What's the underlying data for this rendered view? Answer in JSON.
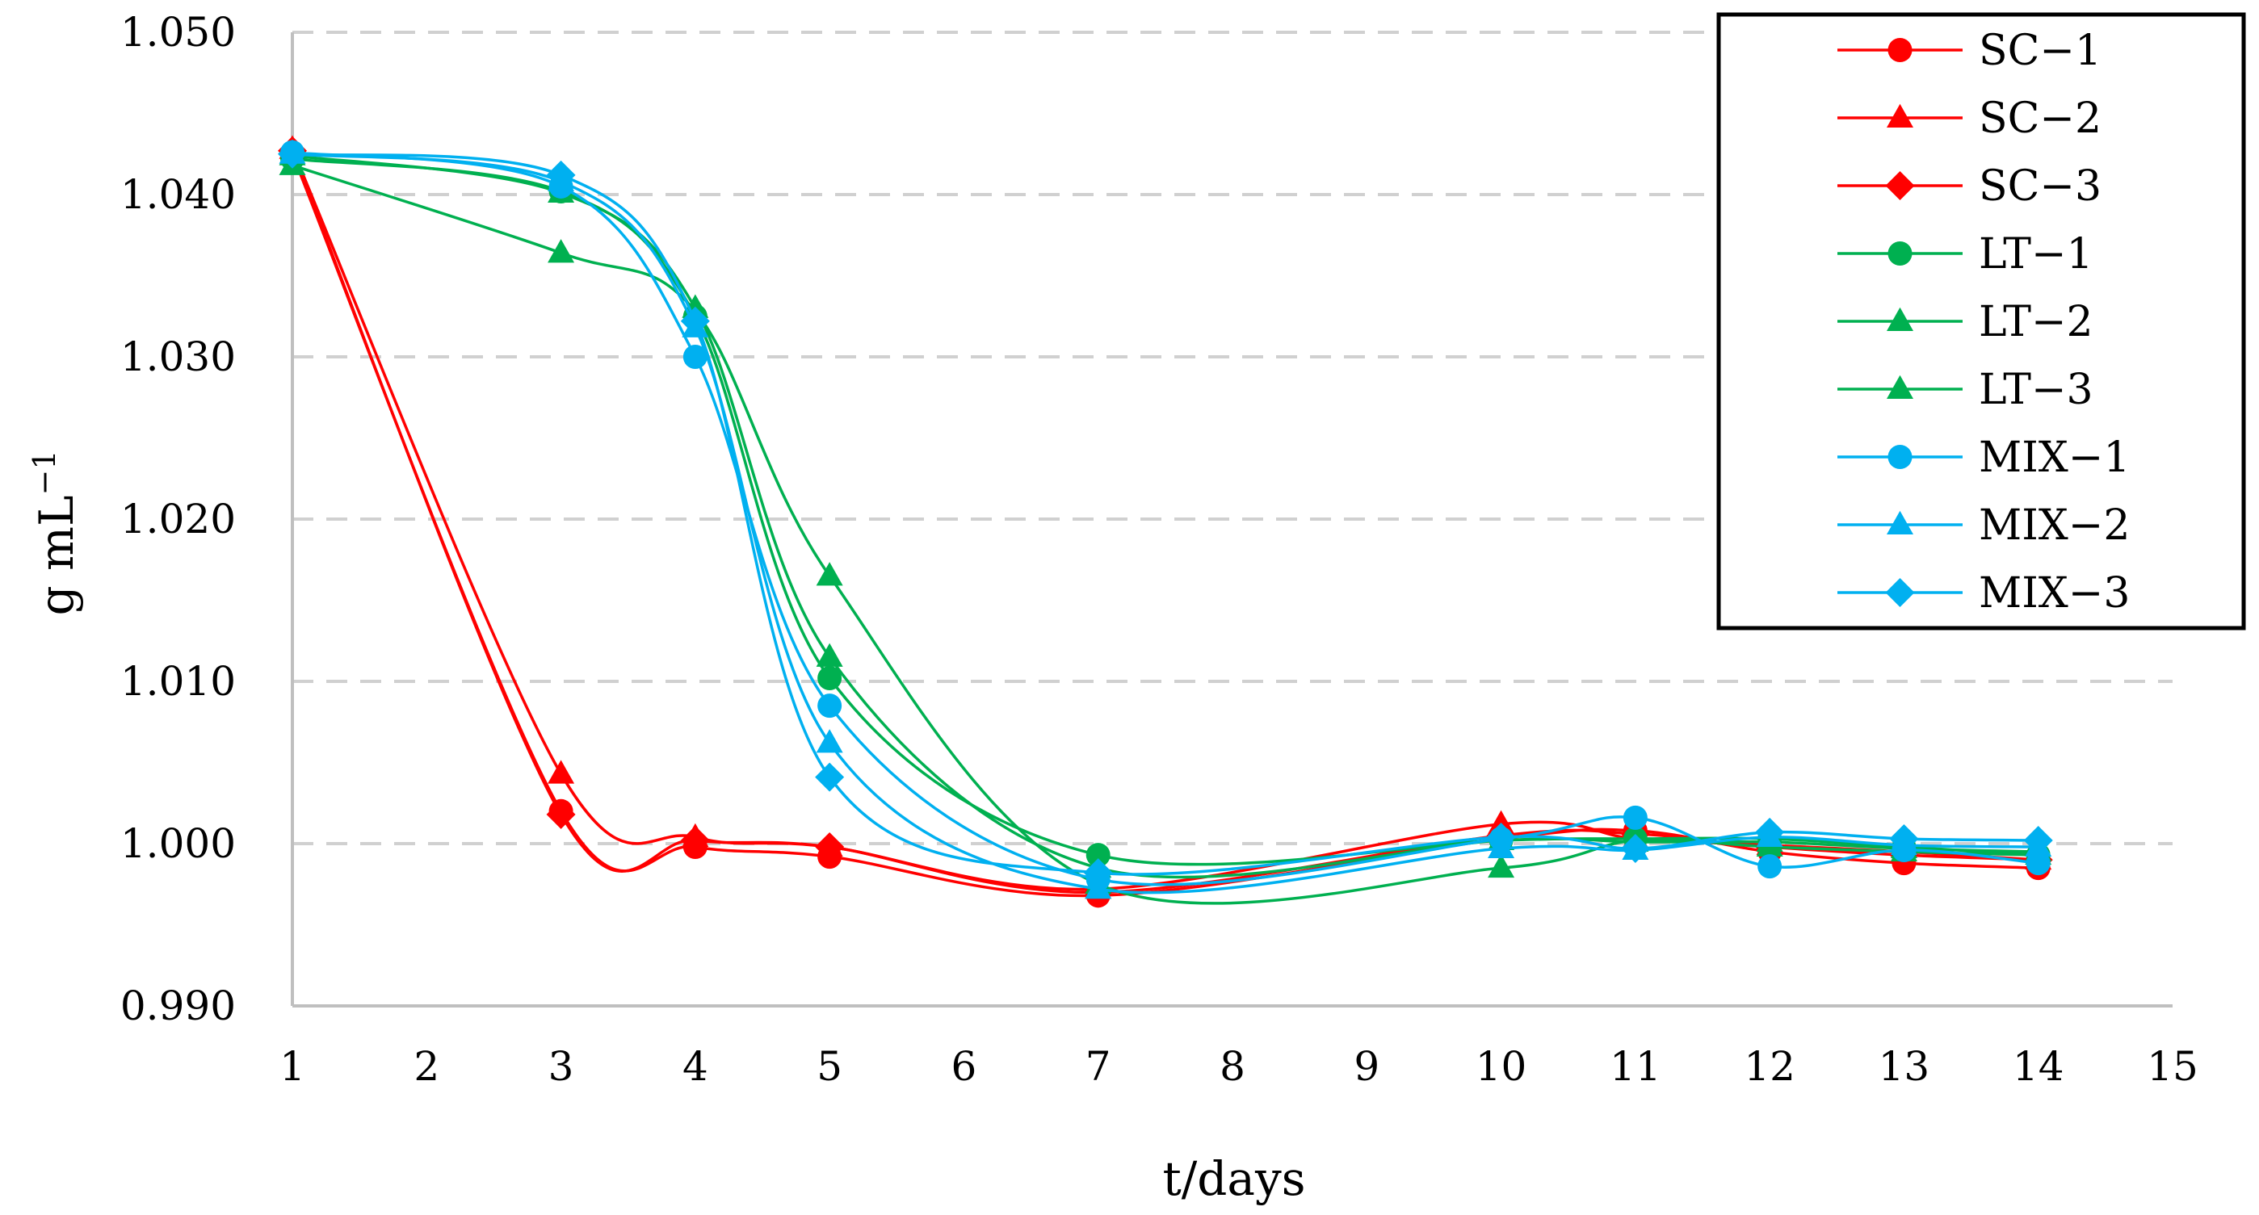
{
  "chart_data": {
    "type": "line",
    "title": "",
    "xlabel": "t/days",
    "ylabel": "g mL",
    "ylabel_superscript": "−1",
    "xlim": [
      1,
      15
    ],
    "ylim": [
      0.99,
      1.05
    ],
    "x_ticks": [
      1,
      2,
      3,
      4,
      5,
      6,
      7,
      8,
      9,
      10,
      11,
      12,
      13,
      14,
      15
    ],
    "y_ticks": [
      0.99,
      1.0,
      1.01,
      1.02,
      1.03,
      1.04,
      1.05
    ],
    "x_tick_labels": [
      "1",
      "2",
      "3",
      "4",
      "5",
      "6",
      "7",
      "8",
      "9",
      "10",
      "11",
      "12",
      "13",
      "14",
      "15"
    ],
    "y_tick_labels": [
      "0.990",
      "1.000",
      "1.010",
      "1.020",
      "1.030",
      "1.040",
      "1.050"
    ],
    "grid": "horizontal dashed",
    "legend_position": "top-right",
    "x": [
      1,
      3,
      4,
      5,
      7,
      10,
      11,
      12,
      13,
      14
    ],
    "series": [
      {
        "name": "SC−1",
        "color": "#ff0000",
        "marker": "circle",
        "values": [
          1.0425,
          1.002,
          0.9998,
          0.9992,
          0.9968,
          1.0003,
          1.0008,
          0.9995,
          0.9988,
          0.9985
        ]
      },
      {
        "name": "SC−2",
        "color": "#ff0000",
        "marker": "triangle",
        "values": [
          1.0428,
          1.0043,
          1.0004,
          0.9998,
          0.9972,
          1.0012,
          1.0003,
          0.9999,
          0.9995,
          0.999
        ]
      },
      {
        "name": "SC−3",
        "color": "#ff0000",
        "marker": "diamond",
        "values": [
          1.0427,
          1.0018,
          1.0002,
          0.9998,
          0.997,
          1.0005,
          1.0006,
          0.9998,
          0.9993,
          0.999
        ]
      },
      {
        "name": "LT−1",
        "color": "#00b050",
        "marker": "circle",
        "values": [
          1.0422,
          1.0402,
          1.0325,
          1.0102,
          0.9993,
          1.0002,
          1.0003,
          1.0003,
          0.9998,
          0.9993
        ]
      },
      {
        "name": "LT−2",
        "color": "#00b050",
        "marker": "triangle",
        "values": [
          1.0424,
          1.0401,
          1.033,
          1.0115,
          0.9985,
          1.0002,
          1.0001,
          1.0001,
          0.9997,
          0.9995
        ]
      },
      {
        "name": "LT−3",
        "color": "#00b050",
        "marker": "triangle",
        "values": [
          1.0418,
          1.0364,
          1.0328,
          1.0165,
          0.9975,
          0.9985,
          1.0002,
          0.9998,
          0.9995,
          0.9993
        ]
      },
      {
        "name": "MIX−1",
        "color": "#00b0f0",
        "marker": "circle",
        "values": [
          1.0426,
          1.0405,
          1.03,
          1.0085,
          0.9978,
          1.0003,
          1.0016,
          0.9986,
          0.9996,
          0.9988
        ]
      },
      {
        "name": "MIX−2",
        "color": "#00b0f0",
        "marker": "triangle",
        "values": [
          1.0425,
          1.0408,
          1.0318,
          1.0062,
          0.9972,
          0.9997,
          0.9996,
          1.0004,
          0.9999,
          0.9998
        ]
      },
      {
        "name": "MIX−3",
        "color": "#00b0f0",
        "marker": "diamond",
        "values": [
          1.0425,
          1.0412,
          1.0322,
          1.0041,
          0.9982,
          1.0004,
          0.9997,
          1.0007,
          1.0003,
          1.0002
        ]
      }
    ]
  }
}
